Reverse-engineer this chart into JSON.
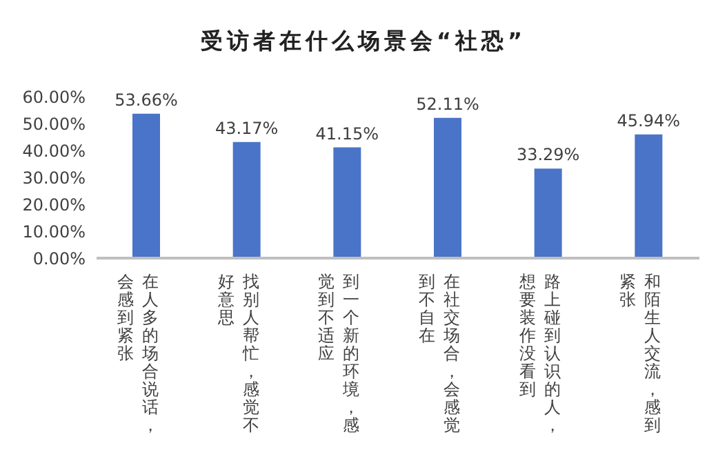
{
  "chart_data": {
    "type": "bar",
    "title": "受访者在什么场景会“社恐”",
    "categories": [
      "在人多的场合说话，会感到紧张",
      "找别人帮忙，感觉不好意思",
      "到一个新的环境，感觉到不适应",
      "在社交场合，会感觉到不自在",
      "路上碰到认识的人，想要装作没看到",
      "和陌生人交流，感到紧张"
    ],
    "series": [
      {
        "color": "#4a74c8",
        "values": [
          53.66,
          43.17,
          41.15,
          52.11,
          33.29,
          45.94
        ],
        "value_labels": [
          "53.66%",
          "43.17%",
          "41.15%",
          "52.11%",
          "33.29%",
          "45.94%"
        ]
      }
    ],
    "ylim": [
      0,
      60
    ],
    "yticks": [
      {
        "value": 0,
        "label": "0.00%"
      },
      {
        "value": 10,
        "label": "10.00%"
      },
      {
        "value": 20,
        "label": "20.00%"
      },
      {
        "value": 30,
        "label": "30.00%"
      },
      {
        "value": 40,
        "label": "40.00%"
      },
      {
        "value": 50,
        "label": "50.00%"
      },
      {
        "value": 60,
        "label": "60.00%"
      }
    ],
    "grid": false,
    "legend": false
  }
}
